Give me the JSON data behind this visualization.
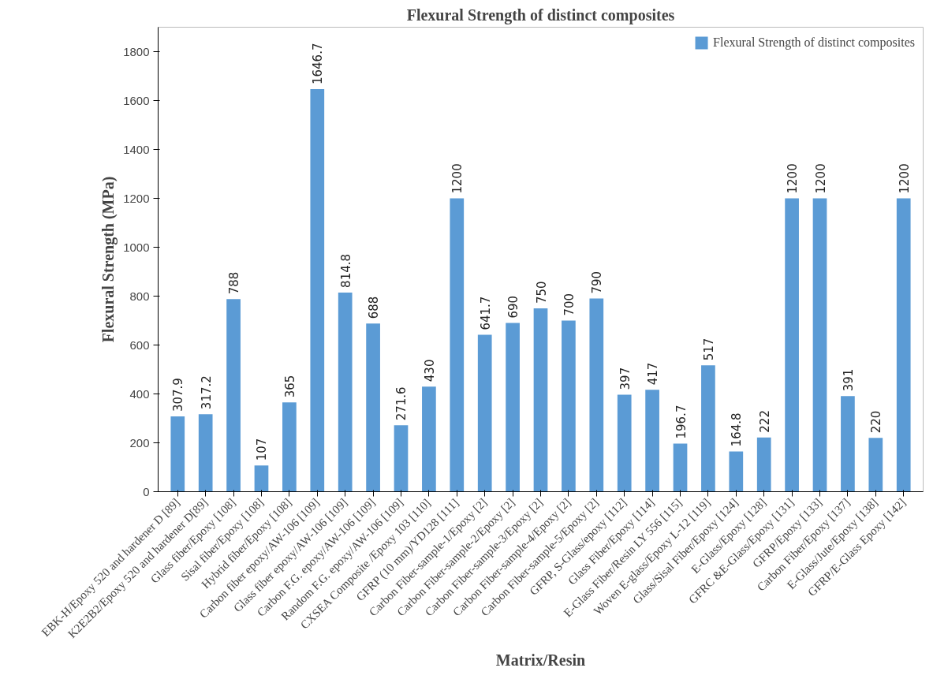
{
  "chart_data": {
    "type": "bar",
    "title": "Flexural Strength of distinct composites",
    "xlabel": "Matrix/Resin",
    "ylabel": "Flexural Strength (MPa)",
    "categories": [
      "EBK-H/Epoxy 520 and hardener D [89]",
      "K2E2B2/Epoxy 520 and hardener D[89]",
      "Glass fiber/Epoxy [108]",
      "Sisal fiber/Epoxy [108]",
      "Hybrid fiber/Epoxy [108]",
      "Carbon fiber epoxy/AW-106 [109]",
      "Glass fiber epoxy/AW-106 [109]",
      "Carbon F.G. epoxy/AW-106 [109]",
      "Random F.G. epoxy/AW-106 [109]",
      "CXSEA Composite /Epoxy 103 [110]",
      "GFRP (10 mm)/YD128 [111]",
      "Carbon Fiber-sample-1/Epoxy [2]",
      "Carbon Fiber-sample-2/Epoxy [2]",
      "Carbon Fiber-sample-3/Epoxy [2]",
      "Carbon Fiber-sample-4/Epoxy [2]",
      "Carbon Fiber-sample-5/Epoxy [2]",
      "GFRP, S-Glass/epoxy [112]",
      "Glass Fiber/Epoxy [114]",
      "E-Glass Fiber/Resin LY 556 [115]",
      "Woven E-glass/Epoxy L-12 [119]",
      "Glass/Sisal Fiber/Epoxy [124]",
      "E-Glass/Epoxy [128]",
      "GFRC &E-Glass/Epoxy [131]",
      "GFRP/Epoxy [133]",
      "Carbon Fiber/Epoxy [137]",
      "E-Glass/Jute/Epoxy [138]",
      "GFRP/E-Glass Epoxy [142]"
    ],
    "series": [
      {
        "name": "Flexural Strength of distinct composites",
        "color": "#5b9bd5",
        "values": [
          307.9,
          317.2,
          788,
          107,
          365,
          1646.7,
          814.8,
          688,
          271.6,
          430,
          1200,
          641.7,
          690,
          750,
          700,
          790,
          397,
          417,
          196.7,
          517,
          164.8,
          222,
          1200,
          1200,
          391,
          220,
          1200
        ]
      }
    ],
    "ylim": [
      0,
      1900
    ],
    "yticks": [
      0,
      200,
      400,
      600,
      800,
      1000,
      1200,
      1400,
      1600,
      1800
    ],
    "data_labels": true,
    "grid": false,
    "legend": "top right"
  }
}
